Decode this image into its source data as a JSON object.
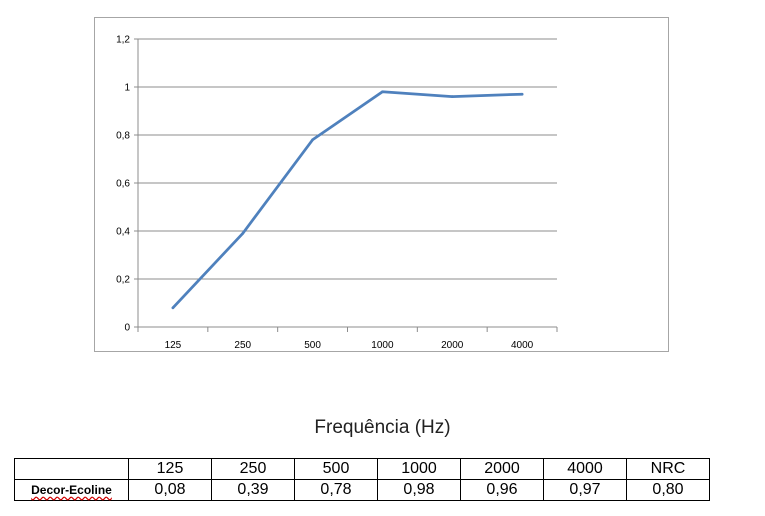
{
  "chart_data": {
    "type": "line",
    "categories": [
      "125",
      "250",
      "500",
      "1000",
      "2000",
      "4000"
    ],
    "series": [
      {
        "name": "",
        "values": [
          0.08,
          0.39,
          0.78,
          0.98,
          0.96,
          0.97
        ],
        "color": "#4f81bd"
      }
    ],
    "y_ticks": [
      "0",
      "0,2",
      "0,4",
      "0,6",
      "0,8",
      "1",
      "1,2"
    ],
    "ylim": [
      0,
      1.2
    ],
    "grid": "horizontal",
    "legend": "none",
    "title": "",
    "ylabel": "",
    "xlabel": "Frequência (Hz)"
  },
  "table": {
    "header": [
      "",
      "125",
      "250",
      "500",
      "1000",
      "2000",
      "4000",
      "NRC"
    ],
    "rows": [
      {
        "label": "Decor-Ecoline",
        "values": [
          "0,08",
          "0,39",
          "0,78",
          "0,98",
          "0,96",
          "0,97",
          "0,80"
        ]
      }
    ]
  }
}
